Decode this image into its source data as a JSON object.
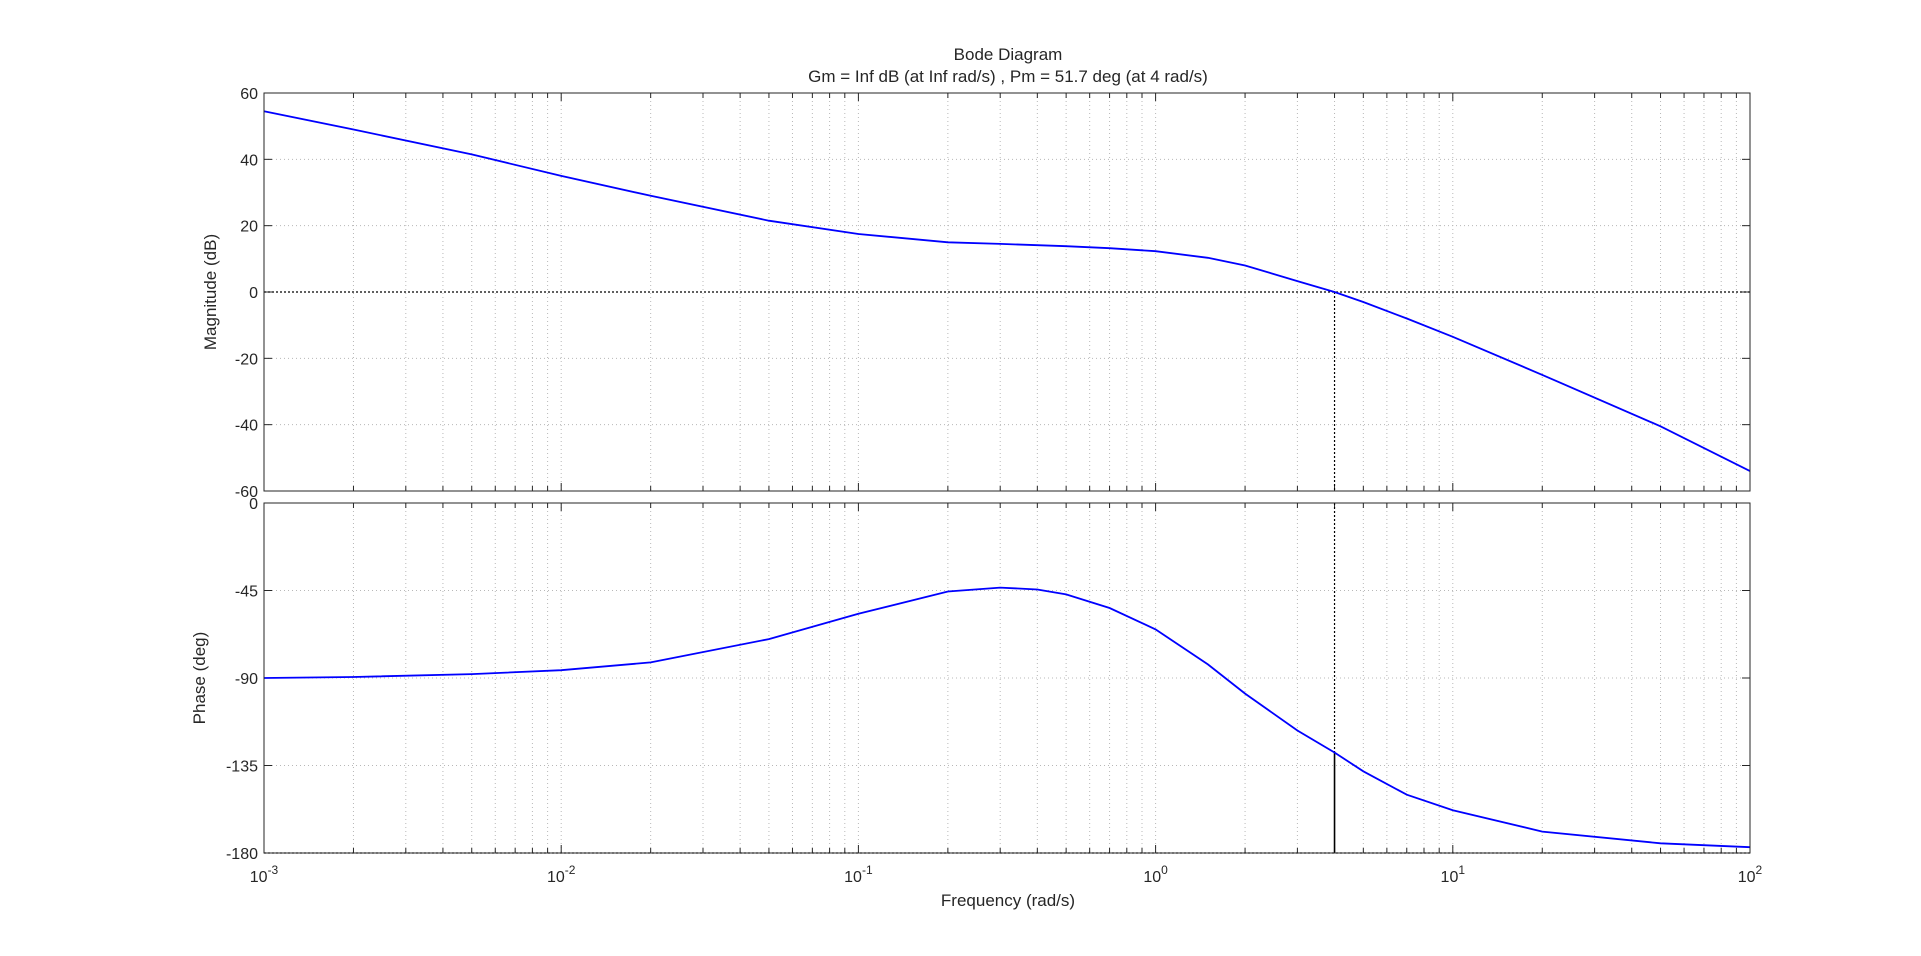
{
  "chart_data": {
    "type": "line",
    "title": "Bode Diagram",
    "subtitle": "Gm = Inf dB (at Inf rad/s) ,  Pm = 51.7 deg (at 4 rad/s)",
    "xlabel": "Frequency  (rad/s)",
    "xscale": "log",
    "xlim": [
      0.001,
      100
    ],
    "x_ticks": [
      {
        "mantissa": "10",
        "exp": "-3"
      },
      {
        "mantissa": "10",
        "exp": "-2"
      },
      {
        "mantissa": "10",
        "exp": "-1"
      },
      {
        "mantissa": "10",
        "exp": "0"
      },
      {
        "mantissa": "10",
        "exp": "1"
      },
      {
        "mantissa": "10",
        "exp": "2"
      }
    ],
    "grid": true,
    "line_color": "#0000ff",
    "crossover_frequency": 4,
    "panels": [
      {
        "name": "magnitude",
        "ylabel": "Magnitude (dB)",
        "ylim": [
          -60,
          60
        ],
        "yticks": [
          "60",
          "40",
          "20",
          "0",
          "-20",
          "-40",
          "-60"
        ],
        "ytick_values": [
          60,
          40,
          20,
          0,
          -20,
          -40,
          -60
        ],
        "reference_line": 0,
        "x": [
          0.001,
          0.002,
          0.005,
          0.01,
          0.02,
          0.05,
          0.1,
          0.2,
          0.3,
          0.5,
          0.7,
          1.0,
          1.5,
          2,
          3,
          4,
          5,
          7,
          10,
          20,
          50,
          100
        ],
        "y": [
          54.5,
          49,
          41.5,
          35,
          29,
          21.5,
          17.5,
          15,
          14.5,
          13.8,
          13.2,
          12.3,
          10.3,
          8,
          3.3,
          0,
          -3,
          -8,
          -13.5,
          -25,
          -40.5,
          -54
        ]
      },
      {
        "name": "phase",
        "ylabel": "Phase (deg)",
        "ylim": [
          -180,
          0
        ],
        "yticks": [
          "0",
          "-45",
          "-90",
          "-135",
          "-180"
        ],
        "ytick_values": [
          0,
          -45,
          -90,
          -135,
          -180
        ],
        "reference_line": -180,
        "x": [
          0.001,
          0.002,
          0.005,
          0.01,
          0.02,
          0.05,
          0.1,
          0.2,
          0.3,
          0.4,
          0.5,
          0.7,
          1.0,
          1.5,
          2,
          3,
          4,
          5,
          7,
          10,
          20,
          50,
          100
        ],
        "y": [
          -90,
          -89.5,
          -88,
          -86,
          -82,
          -70,
          -57,
          -45.5,
          -43.5,
          -44.5,
          -47,
          -54,
          -65,
          -83,
          -98,
          -117,
          -128.3,
          -138,
          -150,
          -158,
          -169,
          -175,
          -177
        ]
      }
    ]
  }
}
